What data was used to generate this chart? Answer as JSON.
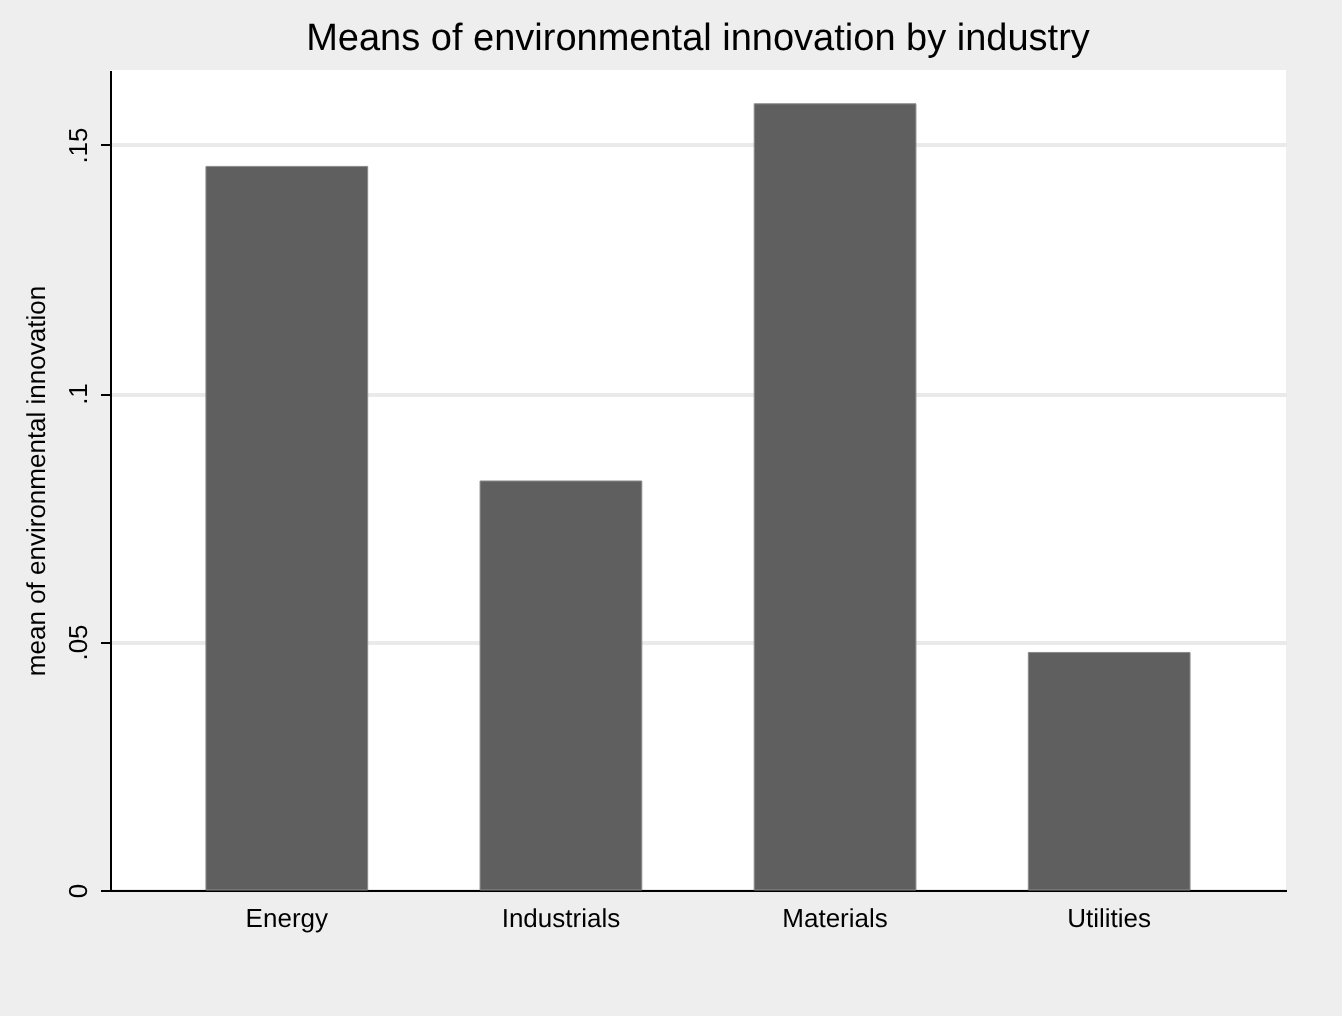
{
  "chart_data": {
    "type": "bar",
    "title": "Means of environmental innovation by industry",
    "ylabel": "mean of environmental innovation",
    "categories": [
      "Energy",
      "Industrials",
      "Materials",
      "Utilities"
    ],
    "values": [
      0.1456,
      0.0823,
      0.1582,
      0.0478
    ],
    "color": "#5f5f5f",
    "ylim": [
      0,
      0.165
    ],
    "yticks": [
      0,
      {
        "value": 0.05,
        "label": ".05"
      },
      {
        "value": 0.1,
        "label": ".1"
      },
      {
        "value": 0.15,
        "label": ".15"
      }
    ],
    "grid": "y"
  }
}
